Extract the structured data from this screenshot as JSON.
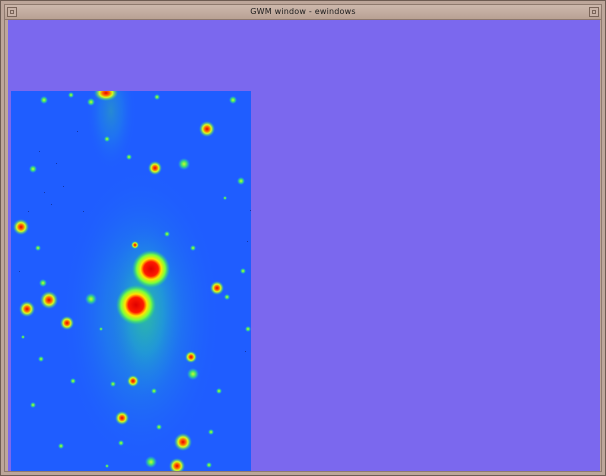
{
  "window": {
    "title": "GWM window - ewindows",
    "client_background": "#7b68ee",
    "frame_color": "#bda69a"
  },
  "image_panel": {
    "description_icon": "fits-image",
    "colormap": "rainbow",
    "background_color": "#1f5dff"
  },
  "title_buttons": [
    {
      "name": "window-menu-icon"
    },
    {
      "name": "maximize-icon"
    }
  ]
}
